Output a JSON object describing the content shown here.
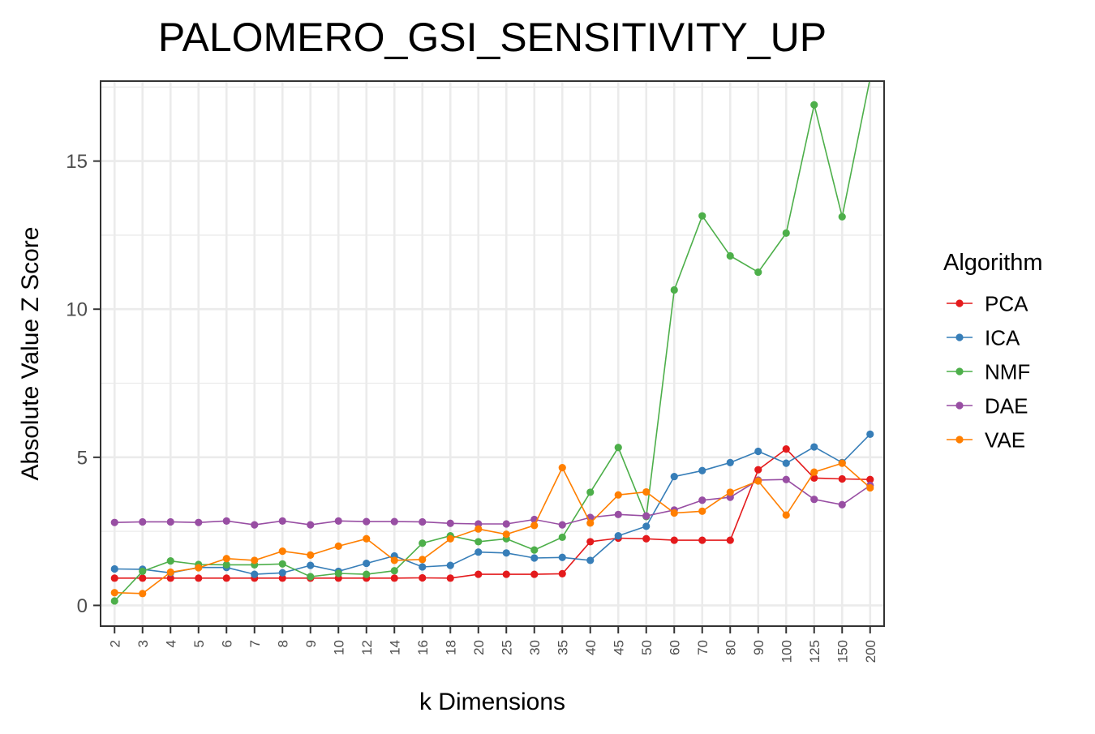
{
  "chart_data": {
    "type": "line",
    "title": "PALOMERO_GSI_SENSITIVITY_UP",
    "xlabel": "k Dimensions",
    "ylabel": "Absolute Value Z Score",
    "ylim": [
      -0.7,
      17.7
    ],
    "yticks": [
      0,
      5,
      10,
      15
    ],
    "yminor": [
      2.5,
      7.5,
      12.5,
      17.5
    ],
    "grid": true,
    "legend": {
      "title": "Algorithm",
      "position": "right"
    },
    "categories": [
      "2",
      "3",
      "4",
      "5",
      "6",
      "7",
      "8",
      "9",
      "10",
      "12",
      "14",
      "16",
      "18",
      "20",
      "25",
      "30",
      "35",
      "40",
      "45",
      "50",
      "60",
      "70",
      "80",
      "90",
      "100",
      "125",
      "150",
      "200"
    ],
    "series": [
      {
        "name": "PCA",
        "color": "#e41a1c",
        "values": [
          0.92,
          0.92,
          0.92,
          0.92,
          0.92,
          0.92,
          0.92,
          0.92,
          0.92,
          0.92,
          0.92,
          0.93,
          0.92,
          1.05,
          1.05,
          1.05,
          1.07,
          2.15,
          2.27,
          2.25,
          2.2,
          2.2,
          2.2,
          4.58,
          5.28,
          4.3,
          4.27,
          4.25
        ]
      },
      {
        "name": "ICA",
        "color": "#377eb8",
        "values": [
          1.23,
          1.22,
          1.1,
          1.28,
          1.28,
          1.05,
          1.1,
          1.35,
          1.15,
          1.42,
          1.67,
          1.3,
          1.35,
          1.8,
          1.77,
          1.6,
          1.62,
          1.52,
          2.35,
          2.67,
          4.35,
          4.55,
          4.82,
          5.2,
          4.8,
          5.35,
          4.82,
          5.78
        ]
      },
      {
        "name": "NMF",
        "color": "#4daf4a",
        "values": [
          0.15,
          1.15,
          1.5,
          1.38,
          1.37,
          1.37,
          1.4,
          0.97,
          1.08,
          1.05,
          1.17,
          2.1,
          2.35,
          2.15,
          2.25,
          1.87,
          2.3,
          3.82,
          5.33,
          3.0,
          10.65,
          13.15,
          11.8,
          11.25,
          12.57,
          16.9,
          13.12,
          17.8
        ]
      },
      {
        "name": "DAE",
        "color": "#984ea3",
        "values": [
          2.8,
          2.82,
          2.82,
          2.8,
          2.85,
          2.72,
          2.85,
          2.72,
          2.85,
          2.83,
          2.83,
          2.82,
          2.77,
          2.75,
          2.75,
          2.9,
          2.72,
          2.97,
          3.07,
          3.02,
          3.22,
          3.55,
          3.65,
          4.23,
          4.25,
          3.58,
          3.4,
          4.05
        ]
      },
      {
        "name": "VAE",
        "color": "#ff7f00",
        "values": [
          0.43,
          0.4,
          1.12,
          1.27,
          1.58,
          1.52,
          1.83,
          1.7,
          2.0,
          2.25,
          1.52,
          1.55,
          2.25,
          2.58,
          2.4,
          2.7,
          4.65,
          2.78,
          3.73,
          3.83,
          3.12,
          3.18,
          3.82,
          4.2,
          3.05,
          4.5,
          4.8,
          3.97
        ]
      }
    ]
  }
}
